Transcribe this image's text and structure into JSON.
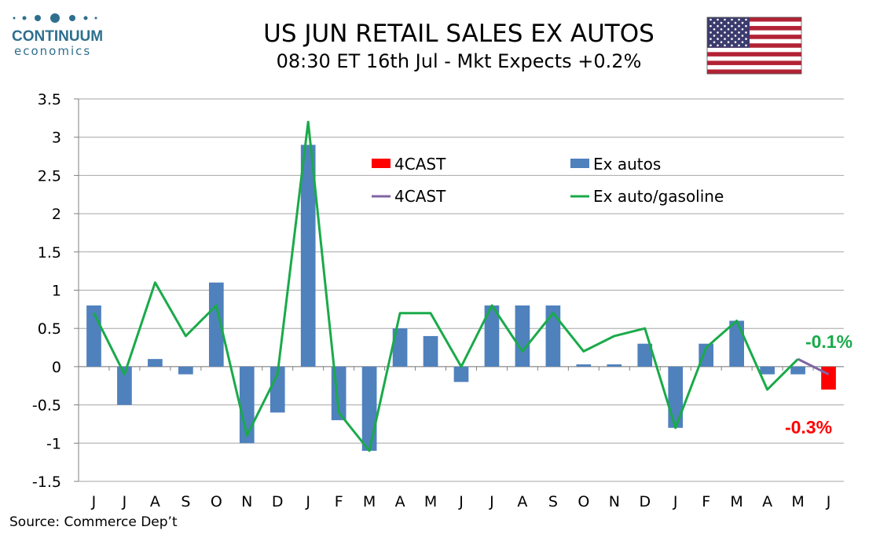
{
  "logo": {
    "name": "CONTINUUM",
    "tagline": "economics"
  },
  "header": {
    "title": "US JUN RETAIL SALES EX AUTOS",
    "subtitle": "08:30 ET 16th Jul - Mkt Expects +0.2%"
  },
  "source": "Source: Commerce Dep’t",
  "colors": {
    "bar": "#4f81bd",
    "forecast_bar": "#ff0000",
    "line": "#1aaa4a",
    "forecast_line": "#8064a2",
    "grid": "#a6a6a6",
    "label_green": "#1aaa4a",
    "label_red": "#ff0000"
  },
  "flag_icon": "us-flag-icon",
  "chart_data": {
    "type": "bar",
    "categories": [
      "J",
      "J",
      "A",
      "S",
      "O",
      "N",
      "D",
      "J",
      "F",
      "M",
      "A",
      "M",
      "J",
      "J",
      "A",
      "S",
      "O",
      "N",
      "D",
      "J",
      "F",
      "M",
      "A",
      "M",
      "J"
    ],
    "ylim": [
      -1.5,
      3.5
    ],
    "yticks": [
      "3.5",
      "3",
      "2.5",
      "2",
      "1.5",
      "1",
      "0.5",
      "0",
      "-0.5",
      "-1",
      "-1.5"
    ],
    "grid": true,
    "legend_placement": "top-center",
    "series": [
      {
        "name": "Ex autos",
        "type": "bar",
        "values": [
          0.8,
          -0.5,
          0.1,
          -0.1,
          1.1,
          -1.0,
          -0.6,
          2.9,
          -0.7,
          -1.1,
          0.5,
          0.4,
          -0.2,
          0.8,
          0.8,
          0.8,
          0.03,
          0.03,
          0.3,
          -0.8,
          0.3,
          0.6,
          -0.1,
          -0.1,
          null
        ]
      },
      {
        "name": "4CAST",
        "type": "bar",
        "values": [
          null,
          null,
          null,
          null,
          null,
          null,
          null,
          null,
          null,
          null,
          null,
          null,
          null,
          null,
          null,
          null,
          null,
          null,
          null,
          null,
          null,
          null,
          null,
          null,
          -0.3
        ]
      },
      {
        "name": "Ex auto/gasoline",
        "type": "line",
        "values": [
          0.7,
          -0.1,
          1.1,
          0.4,
          0.8,
          -0.9,
          -0.1,
          3.2,
          -0.6,
          -1.1,
          0.7,
          0.7,
          0.0,
          0.8,
          0.2,
          0.7,
          0.2,
          0.4,
          0.5,
          -0.8,
          0.25,
          0.6,
          -0.3,
          0.1,
          null
        ]
      },
      {
        "name": "4CAST",
        "type": "line",
        "values": [
          null,
          null,
          null,
          null,
          null,
          null,
          null,
          null,
          null,
          null,
          null,
          null,
          null,
          null,
          null,
          null,
          null,
          null,
          null,
          null,
          null,
          null,
          null,
          0.1,
          -0.1
        ]
      }
    ],
    "annotations": [
      {
        "text": "-0.1%",
        "color": "green"
      },
      {
        "text": "-0.3%",
        "color": "red"
      }
    ]
  }
}
